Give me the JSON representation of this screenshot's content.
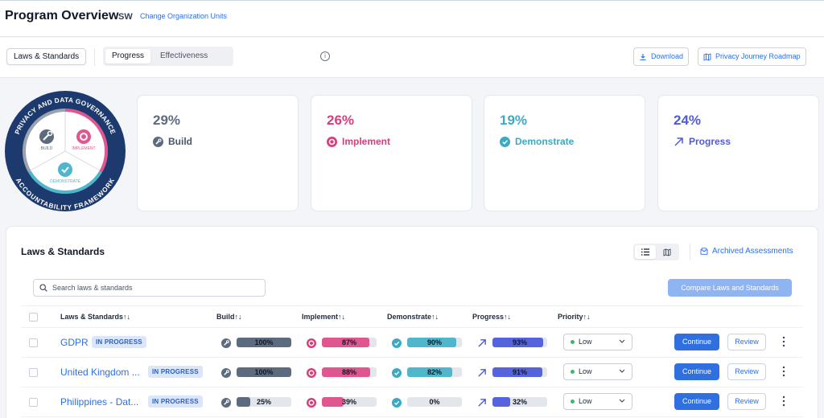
{
  "header": {
    "title": "Program Overview",
    "org_code": "SW",
    "change_org_link": "Change Organization Units"
  },
  "toolbar": {
    "laws_standards_button": "Laws & Standards",
    "tabs": [
      {
        "label": "Progress",
        "active": true
      },
      {
        "label": "Effectiveness",
        "active": false
      }
    ],
    "info_icon": "i",
    "download_button": "Download",
    "roadmap_button": "Privacy Journey Roadmap"
  },
  "framework_badge": {
    "top_text": "PRIVACY AND DATA GOVERNANCE",
    "bottom_text": "ACCOUNTABILITY FRAMEWORK",
    "segments": [
      "BUILD",
      "IMPLEMENT",
      "DEMONSTRATE"
    ]
  },
  "stats": [
    {
      "percent": "29%",
      "label": "Build",
      "color": "#6b7280",
      "icon": "wrench-icon"
    },
    {
      "percent": "26%",
      "label": "Implement",
      "color": "#d43f7c",
      "icon": "gear-icon"
    },
    {
      "percent": "19%",
      "label": "Demonstrate",
      "color": "#3ea9c3",
      "icon": "check-circle-icon"
    },
    {
      "percent": "24%",
      "label": "Progress",
      "color": "#4f5bd5",
      "icon": "arrow-up-right-icon"
    }
  ],
  "laws": {
    "title": "Laws & Standards",
    "archived_link": "Archived Assessments",
    "search_placeholder": "Search laws & standards",
    "compare_button": "Compare Laws and Standards",
    "columns": {
      "name": "Laws & Standards↑↓",
      "build": "Build↑↓",
      "implement": "Implement↑↓",
      "demonstrate": "Demonstrate↑↓",
      "progress": "Progress↑↓",
      "priority": "Priority↑↓"
    },
    "rows": [
      {
        "name": "GDPR",
        "status": "IN PROGRESS",
        "build": "100%",
        "implement": "87%",
        "demonstrate": "90%",
        "progress": "93%",
        "build_v": 1.0,
        "implement_v": 0.87,
        "demonstrate_v": 0.9,
        "progress_v": 0.93,
        "priority": "Low",
        "continue": "Continue",
        "review": "Review"
      },
      {
        "name": "United Kingdom ...",
        "status": "IN PROGRESS",
        "build": "100%",
        "implement": "88%",
        "demonstrate": "82%",
        "progress": "91%",
        "build_v": 1.0,
        "implement_v": 0.88,
        "demonstrate_v": 0.82,
        "progress_v": 0.91,
        "priority": "Low",
        "continue": "Continue",
        "review": "Review"
      },
      {
        "name": "Philippines - Dat...",
        "status": "IN PROGRESS",
        "build": "25%",
        "implement": "39%",
        "demonstrate": "0%",
        "progress": "32%",
        "build_v": 0.25,
        "implement_v": 0.39,
        "demonstrate_v": 0.0,
        "progress_v": 0.32,
        "priority": "Low",
        "continue": "Continue",
        "review": "Review"
      }
    ]
  },
  "colors": {
    "accent": "#2f6fe0",
    "build": "#5d6b7e",
    "implement": "#e0568e",
    "demonstrate": "#4fb6cc",
    "progress": "#5563dd",
    "badge_navy": "#1d3a6e"
  }
}
